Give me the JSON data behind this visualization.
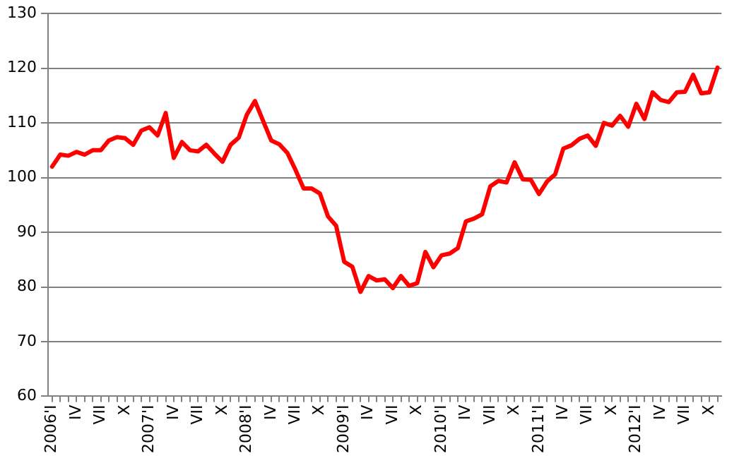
{
  "chart_data": {
    "type": "line",
    "categories": [
      "2006'I",
      null,
      null,
      "IV",
      null,
      null,
      "VII",
      null,
      null,
      "X",
      null,
      null,
      "2007'I",
      null,
      null,
      "IV",
      null,
      null,
      "VII",
      null,
      null,
      "X",
      null,
      null,
      "2008'I",
      null,
      null,
      "IV",
      null,
      null,
      "VII",
      null,
      null,
      "X",
      null,
      null,
      "2009'I",
      null,
      null,
      "IV",
      null,
      null,
      "VII",
      null,
      null,
      "X",
      null,
      null,
      "2010'I",
      null,
      null,
      "IV",
      null,
      null,
      "VII",
      null,
      null,
      "X",
      null,
      null,
      "2011'I",
      null,
      null,
      "IV",
      null,
      null,
      "VII",
      null,
      null,
      "X",
      null,
      null,
      "2012'I",
      null,
      null,
      "IV",
      null,
      null,
      "VII",
      null,
      null,
      "X",
      null
    ],
    "series": [
      {
        "color": "#ff0000",
        "values": [
          102,
          104.2,
          104,
          104.7,
          104.2,
          105,
          105,
          106.8,
          107.4,
          107.2,
          106,
          108.6,
          109.2,
          107.7,
          111.8,
          103.6,
          106.5,
          105,
          104.8,
          106,
          104.4,
          102.9,
          106,
          107.3,
          111.5,
          114,
          110.4,
          106.8,
          106.1,
          104.5,
          101.4,
          98,
          98,
          97.1,
          92.9,
          91.2,
          84.6,
          83.7,
          79.1,
          82,
          81.2,
          81.4,
          79.8,
          82,
          80.2,
          80.7,
          86.4,
          83.6,
          85.8,
          86.1,
          87.1,
          92,
          92.5,
          93.3,
          98.4,
          99.4,
          99.1,
          102.8,
          99.7,
          99.6,
          97,
          99.3,
          100.6,
          105.3,
          105.9,
          107.1,
          107.7,
          105.8,
          110,
          109.5,
          111.3,
          109.3,
          113.5,
          110.7,
          115.6,
          114.2,
          113.8,
          115.6,
          115.7,
          118.8,
          115.4,
          115.6,
          120.1
        ]
      }
    ],
    "ylim": [
      60,
      130
    ],
    "yticks": [
      60,
      70,
      80,
      90,
      100,
      110,
      120,
      130
    ],
    "grid": "y",
    "legend": false,
    "marker": "none",
    "line_style": "solid"
  }
}
